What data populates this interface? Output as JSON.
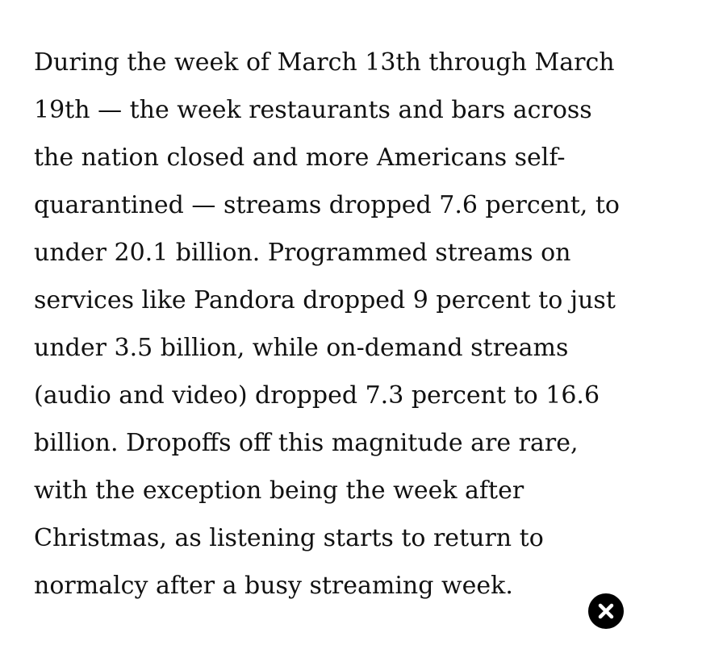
{
  "article": {
    "lines": [
      "During the week of March 13th through March",
      "19th — the week restaurants and bars across",
      "the nation closed and more Americans self-",
      "quarantined — streams dropped 7.6 percent, to",
      "under 20.1 billion. Programmed streams on",
      "services like Pandora dropped 9 percent to just",
      "under 3.5 billion, while on-demand streams",
      "(audio and video) dropped 7.3 percent to 16.6",
      "billion. Dropoffs off this magnitude are rare,",
      "with the exception being the week after",
      "Christmas, as listening starts to return to",
      "normalcy after a busy streaming week."
    ]
  },
  "close_button": {
    "icon": "close-icon",
    "background_color": "#000000",
    "icon_color": "#ffffff"
  }
}
